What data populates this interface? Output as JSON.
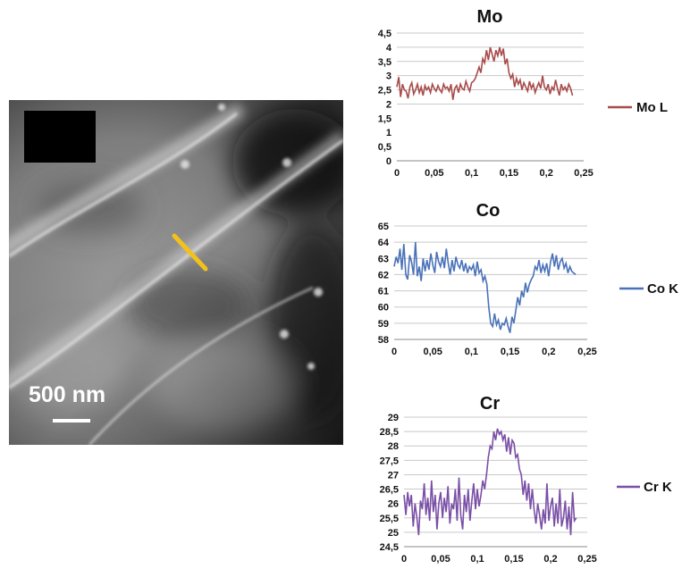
{
  "micrograph": {
    "scale_label": "500 nm",
    "line_color": "#f2c21b"
  },
  "chart_data": [
    {
      "type": "line",
      "title": "Mo",
      "legend": "Mo L",
      "legend_position": "right",
      "color": "#a84b4b",
      "grid": true,
      "xlim": [
        0,
        0.25
      ],
      "ylim": [
        0,
        4.5
      ],
      "x_ticks": [
        0,
        0.05,
        0.1,
        0.15,
        0.2,
        0.25
      ],
      "x_tick_labels": [
        "0",
        "0,05",
        "0,1",
        "0,15",
        "0,2",
        "0,25"
      ],
      "y_ticks": [
        0,
        0.5,
        1,
        1.5,
        2,
        2.5,
        3,
        3.5,
        4,
        4.5
      ],
      "y_tick_labels": [
        "0",
        "0,5",
        "1",
        "1,5",
        "2",
        "2,5",
        "3",
        "3,5",
        "4",
        "4,5"
      ],
      "y_gridlines": [
        2,
        2.5,
        3,
        3.5,
        4,
        4.5
      ],
      "x": [
        0,
        0.0025,
        0.005,
        0.0075,
        0.01,
        0.0125,
        0.015,
        0.0175,
        0.02,
        0.0225,
        0.025,
        0.0275,
        0.03,
        0.0325,
        0.035,
        0.0375,
        0.04,
        0.0425,
        0.045,
        0.0475,
        0.05,
        0.0525,
        0.055,
        0.0575,
        0.06,
        0.0625,
        0.065,
        0.0675,
        0.07,
        0.0725,
        0.075,
        0.0775,
        0.08,
        0.0825,
        0.085,
        0.0875,
        0.09,
        0.0925,
        0.095,
        0.0975,
        0.1,
        0.1025,
        0.105,
        0.1075,
        0.11,
        0.1125,
        0.115,
        0.1175,
        0.12,
        0.1225,
        0.125,
        0.1275,
        0.13,
        0.1325,
        0.135,
        0.1375,
        0.14,
        0.1425,
        0.145,
        0.1475,
        0.15,
        0.1525,
        0.155,
        0.1575,
        0.16,
        0.1625,
        0.165,
        0.1675,
        0.17,
        0.1725,
        0.175,
        0.1775,
        0.18,
        0.1825,
        0.185,
        0.1875,
        0.19,
        0.1925,
        0.195,
        0.1975,
        0.2,
        0.2025,
        0.205,
        0.2075,
        0.21,
        0.2125,
        0.215,
        0.2175,
        0.22,
        0.2225,
        0.225,
        0.2275,
        0.23,
        0.2325,
        0.235
      ],
      "y": [
        2.6,
        2.95,
        2.25,
        2.7,
        2.5,
        2.45,
        2.2,
        2.6,
        2.75,
        2.35,
        2.5,
        2.7,
        2.4,
        2.6,
        2.3,
        2.65,
        2.5,
        2.6,
        2.4,
        2.7,
        2.55,
        2.45,
        2.65,
        2.5,
        2.4,
        2.7,
        2.55,
        2.6,
        2.45,
        2.7,
        2.15,
        2.55,
        2.65,
        2.4,
        2.7,
        2.55,
        2.5,
        2.8,
        2.6,
        2.45,
        2.75,
        2.8,
        2.9,
        3.1,
        3.3,
        3.1,
        3.6,
        3.45,
        3.9,
        3.55,
        4,
        3.75,
        3.5,
        3.9,
        3.7,
        4,
        3.7,
        3.95,
        3.4,
        3.6,
        3.1,
        2.9,
        3.05,
        2.6,
        2.9,
        2.7,
        2.85,
        2.5,
        2.75,
        2.6,
        2.45,
        2.8,
        2.55,
        2.7,
        2.4,
        2.6,
        2.75,
        2.55,
        3,
        2.6,
        2.5,
        2.7,
        2.35,
        2.6,
        2.5,
        2.85,
        2.55,
        2.3,
        2.7,
        2.5,
        2.6,
        2.45,
        2.7,
        2.55,
        2.3
      ]
    },
    {
      "type": "line",
      "title": "Co",
      "legend": "Co K",
      "legend_position": "right",
      "color": "#4a72b8",
      "grid": true,
      "xlim": [
        0,
        0.25
      ],
      "ylim": [
        58,
        65
      ],
      "x_ticks": [
        0,
        0.05,
        0.1,
        0.15,
        0.2,
        0.25
      ],
      "x_tick_labels": [
        "0",
        "0,05",
        "0,1",
        "0,15",
        "0,2",
        "0,25"
      ],
      "y_ticks": [
        58,
        59,
        60,
        61,
        62,
        63,
        64,
        65
      ],
      "y_tick_labels": [
        "58",
        "59",
        "60",
        "61",
        "62",
        "63",
        "64",
        "65"
      ],
      "y_gridlines": [
        58,
        59,
        60,
        61,
        62,
        63,
        64,
        65
      ],
      "x": [
        0,
        0.0025,
        0.005,
        0.0075,
        0.01,
        0.0125,
        0.015,
        0.0175,
        0.02,
        0.0225,
        0.025,
        0.0275,
        0.03,
        0.0325,
        0.035,
        0.0375,
        0.04,
        0.0425,
        0.045,
        0.0475,
        0.05,
        0.0525,
        0.055,
        0.0575,
        0.06,
        0.0625,
        0.065,
        0.0675,
        0.07,
        0.0725,
        0.075,
        0.0775,
        0.08,
        0.0825,
        0.085,
        0.0875,
        0.09,
        0.0925,
        0.095,
        0.0975,
        0.1,
        0.1025,
        0.105,
        0.1075,
        0.11,
        0.1125,
        0.115,
        0.1175,
        0.12,
        0.1225,
        0.125,
        0.1275,
        0.13,
        0.1325,
        0.135,
        0.1375,
        0.14,
        0.1425,
        0.145,
        0.1475,
        0.15,
        0.1525,
        0.155,
        0.1575,
        0.16,
        0.1625,
        0.165,
        0.1675,
        0.17,
        0.1725,
        0.175,
        0.1775,
        0.18,
        0.1825,
        0.185,
        0.1875,
        0.19,
        0.1925,
        0.195,
        0.1975,
        0.2,
        0.2025,
        0.205,
        0.2075,
        0.21,
        0.2125,
        0.215,
        0.2175,
        0.22,
        0.2225,
        0.225,
        0.2275,
        0.23,
        0.2325,
        0.235
      ],
      "y": [
        62.5,
        63.1,
        62.7,
        63.6,
        62.3,
        63.9,
        62,
        61.7,
        63.2,
        62.8,
        62,
        64,
        61.9,
        62.5,
        61.6,
        63,
        62.2,
        62.9,
        62.3,
        63.3,
        62.6,
        62.1,
        63.4,
        62.8,
        62.5,
        63.1,
        62.4,
        63.6,
        62.7,
        62,
        62.9,
        62.2,
        63.1,
        62.6,
        62.4,
        62.9,
        62.2,
        62.7,
        62.1,
        62.5,
        62.3,
        62.6,
        61.9,
        62.8,
        62.1,
        62.3,
        61.6,
        61.9,
        61.4,
        60,
        59,
        58.8,
        59.6,
        58.9,
        59.2,
        58.6,
        59,
        58.9,
        59.3,
        58.8,
        58.4,
        59.4,
        59,
        59.8,
        60.6,
        60.1,
        61,
        60.6,
        61.5,
        60.9,
        61.4,
        61.7,
        61.9,
        62.5,
        62.3,
        62.9,
        62.1,
        62.6,
        62.2,
        62.7,
        61.9,
        62.8,
        63.3,
        62.5,
        63.2,
        62.3,
        62.8,
        63,
        62.4,
        62.7,
        62.1,
        62.5,
        62.2,
        62.1,
        62
      ]
    },
    {
      "type": "line",
      "title": "Cr",
      "legend": "Cr K",
      "legend_position": "right",
      "color": "#7a4fa6",
      "grid": true,
      "xlim": [
        0,
        0.25
      ],
      "ylim": [
        24.5,
        29
      ],
      "x_ticks": [
        0,
        0.05,
        0.1,
        0.15,
        0.2,
        0.25
      ],
      "x_tick_labels": [
        "0",
        "0,05",
        "0,1",
        "0,15",
        "0,2",
        "0,25"
      ],
      "y_ticks": [
        24.5,
        25,
        25.5,
        26,
        26.5,
        27,
        27.5,
        28,
        28.5,
        29
      ],
      "y_tick_labels": [
        "24,5",
        "25",
        "25,5",
        "26",
        "26,5",
        "27",
        "27,5",
        "28",
        "28,5",
        "29"
      ],
      "y_gridlines": [
        24.5,
        25,
        25.5,
        26,
        26.5,
        27,
        27.5,
        28,
        28.5,
        29
      ],
      "x": [
        0,
        0.0025,
        0.005,
        0.0075,
        0.01,
        0.0125,
        0.015,
        0.0175,
        0.02,
        0.0225,
        0.025,
        0.0275,
        0.03,
        0.0325,
        0.035,
        0.0375,
        0.04,
        0.0425,
        0.045,
        0.0475,
        0.05,
        0.0525,
        0.055,
        0.0575,
        0.06,
        0.0625,
        0.065,
        0.0675,
        0.07,
        0.0725,
        0.075,
        0.0775,
        0.08,
        0.0825,
        0.085,
        0.0875,
        0.09,
        0.0925,
        0.095,
        0.0975,
        0.1,
        0.1025,
        0.105,
        0.1075,
        0.11,
        0.1125,
        0.115,
        0.1175,
        0.12,
        0.1225,
        0.125,
        0.1275,
        0.13,
        0.1325,
        0.135,
        0.1375,
        0.14,
        0.1425,
        0.145,
        0.1475,
        0.15,
        0.1525,
        0.155,
        0.1575,
        0.16,
        0.1625,
        0.165,
        0.1675,
        0.17,
        0.1725,
        0.175,
        0.1775,
        0.18,
        0.1825,
        0.185,
        0.1875,
        0.19,
        0.1925,
        0.195,
        0.1975,
        0.2,
        0.2025,
        0.205,
        0.2075,
        0.21,
        0.2125,
        0.215,
        0.2175,
        0.22,
        0.2225,
        0.225,
        0.2275,
        0.23,
        0.2325,
        0.235
      ],
      "y": [
        26.3,
        25.6,
        26.4,
        25.9,
        26.3,
        25.2,
        26,
        25.5,
        24.9,
        26.1,
        25.8,
        26.7,
        25.6,
        26.2,
        25.4,
        26.8,
        25.7,
        26.3,
        25.1,
        26,
        26.4,
        25.5,
        26.2,
        25.7,
        26.6,
        25.3,
        26,
        25.8,
        26.5,
        25.4,
        26.9,
        25.6,
        25.1,
        26.3,
        25.7,
        26.5,
        25.4,
        26.1,
        26.7,
        25.8,
        26.5,
        25.9,
        26.3,
        26.8,
        26.5,
        27,
        27.6,
        28,
        27.9,
        28.5,
        28.2,
        28.6,
        28.4,
        28.5,
        28.2,
        28.4,
        27.8,
        28.3,
        27.7,
        28.2,
        28.1,
        27.6,
        27.7,
        27.2,
        27,
        26.3,
        26.8,
        26.1,
        26.7,
        25.8,
        26.5,
        25.8,
        25.3,
        26,
        25.6,
        25.1,
        25.8,
        25.3,
        26.7,
        25.4,
        25.9,
        26.2,
        25.2,
        26,
        25.3,
        26.5,
        25.2,
        25.5,
        26.1,
        25.1,
        25.9,
        24.9,
        26.4,
        25.4,
        25.5
      ]
    }
  ]
}
